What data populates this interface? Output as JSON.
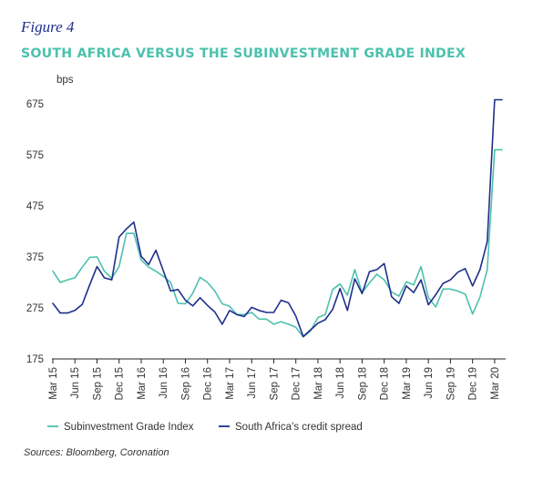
{
  "figure": {
    "label": "Figure 4",
    "title": "SOUTH AFRICA VERSUS THE SUBINVESTMENT GRADE INDEX",
    "sources": "Sources: Bloomberg, Coronation"
  },
  "chart_data": {
    "type": "line",
    "title": "SOUTH AFRICA VERSUS THE SUBINVESTMENT GRADE INDEX",
    "ylabel": "bps",
    "xlabel": "",
    "ylim": [
      175,
      700
    ],
    "yticks": [
      175,
      275,
      375,
      475,
      575,
      675
    ],
    "xlim": [
      "2015-03",
      "2020-04"
    ],
    "xticks": [
      "Mar 15",
      "Jun 15",
      "Sep 15",
      "Dec 15",
      "Mar 16",
      "Jun 16",
      "Sep 16",
      "Dec 16",
      "Mar 17",
      "Jun 17",
      "Sep 17",
      "Dec 17",
      "Mar 18",
      "Jun 18",
      "Sep 18",
      "Dec 18",
      "Mar 19",
      "Jun 19",
      "Sep 19",
      "Dec 19",
      "Mar 20"
    ],
    "grid": false,
    "legend_position": "bottom",
    "x": [
      "2015-03",
      "2015-04",
      "2015-05",
      "2015-06",
      "2015-07",
      "2015-08",
      "2015-09",
      "2015-10",
      "2015-11",
      "2015-12",
      "2016-01",
      "2016-02",
      "2016-03",
      "2016-04",
      "2016-05",
      "2016-06",
      "2016-07",
      "2016-08",
      "2016-09",
      "2016-10",
      "2016-11",
      "2016-12",
      "2017-01",
      "2017-02",
      "2017-03",
      "2017-04",
      "2017-05",
      "2017-06",
      "2017-07",
      "2017-08",
      "2017-09",
      "2017-10",
      "2017-11",
      "2017-12",
      "2018-01",
      "2018-02",
      "2018-03",
      "2018-04",
      "2018-05",
      "2018-06",
      "2018-07",
      "2018-08",
      "2018-09",
      "2018-10",
      "2018-11",
      "2018-12",
      "2019-01",
      "2019-02",
      "2019-03",
      "2019-04",
      "2019-05",
      "2019-06",
      "2019-07",
      "2019-08",
      "2019-09",
      "2019-10",
      "2019-11",
      "2019-12",
      "2020-01",
      "2020-02",
      "2020-03",
      "2020-04"
    ],
    "series": [
      {
        "name": "Subinvestment Grade Index",
        "color": "#4cc1ad",
        "values": [
          347,
          325,
          330,
          334,
          355,
          374,
          375,
          347,
          333,
          356,
          421,
          421,
          369,
          355,
          347,
          337,
          325,
          284,
          283,
          304,
          335,
          325,
          308,
          283,
          278,
          262,
          262,
          266,
          253,
          253,
          243,
          248,
          243,
          237,
          218,
          230,
          256,
          262,
          311,
          322,
          300,
          350,
          305,
          324,
          341,
          330,
          306,
          298,
          326,
          320,
          356,
          295,
          277,
          312,
          312,
          308,
          302,
          263,
          296,
          350,
          585,
          585
        ]
      },
      {
        "name": "South Africa’s credit spread",
        "color": "#1f2f8c",
        "values": [
          284,
          265,
          265,
          270,
          282,
          320,
          356,
          334,
          330,
          414,
          430,
          443,
          376,
          360,
          388,
          348,
          308,
          311,
          290,
          279,
          295,
          280,
          267,
          243,
          270,
          262,
          258,
          276,
          270,
          266,
          266,
          290,
          285,
          259,
          219,
          232,
          245,
          252,
          272,
          313,
          270,
          332,
          303,
          346,
          350,
          362,
          297,
          284,
          318,
          305,
          330,
          281,
          301,
          323,
          330,
          345,
          352,
          318,
          350,
          405,
          683,
          683
        ]
      }
    ]
  }
}
